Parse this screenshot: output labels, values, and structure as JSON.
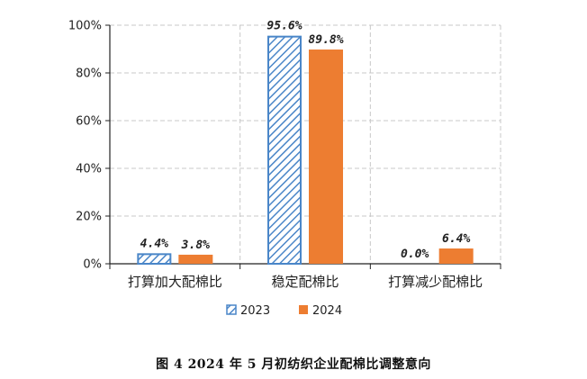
{
  "chart_data": {
    "type": "bar",
    "categories": [
      "打算加大配棉比",
      "稳定配棉比",
      "打算减少配棉比"
    ],
    "series": [
      {
        "name": "2023",
        "values": [
          4.4,
          95.6,
          0.0
        ],
        "labels": [
          "4.4%",
          "95.6%",
          "0.0%"
        ],
        "color": "#4a86c8",
        "pattern": "diagonal-hatch"
      },
      {
        "name": "2024",
        "values": [
          3.8,
          89.8,
          6.4
        ],
        "labels": [
          "3.8%",
          "89.8%",
          "6.4%"
        ],
        "color": "#ed7d31",
        "pattern": "solid"
      }
    ],
    "yticks": [
      0,
      20,
      40,
      60,
      80,
      100
    ],
    "ytick_labels": [
      "0%",
      "20%",
      "40%",
      "60%",
      "80%",
      "100%"
    ],
    "ylim": [
      0,
      100
    ],
    "grid": true,
    "legend_position": "bottom-center"
  },
  "caption": "图 4   2024 年 5 月初纺织企业配棉比调整意向"
}
